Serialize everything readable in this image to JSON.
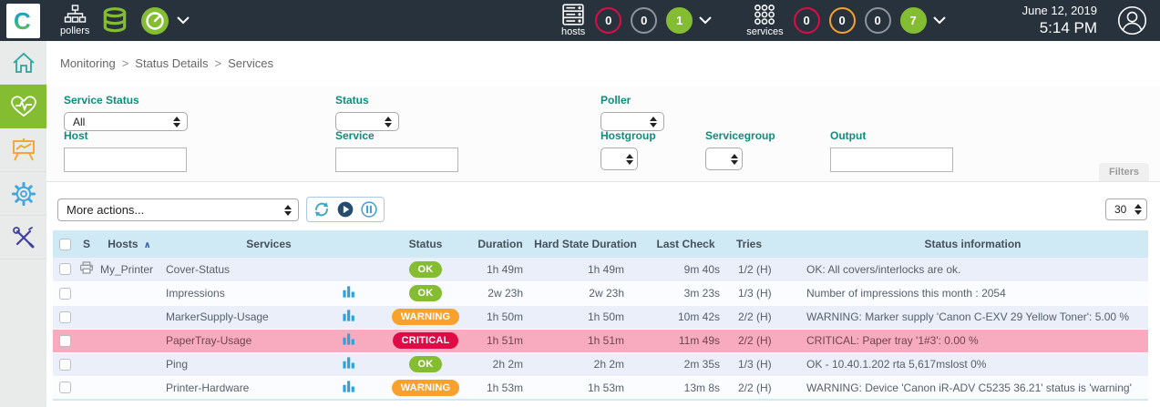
{
  "topbar": {
    "logo_letter": "C",
    "pollers_label": "pollers",
    "hosts": {
      "label": "hosts",
      "counters": [
        {
          "value": "0",
          "style": "red-outline"
        },
        {
          "value": "0",
          "style": "gray-outline"
        },
        {
          "value": "1",
          "style": "green-filled"
        }
      ]
    },
    "services": {
      "label": "services",
      "counters": [
        {
          "value": "0",
          "style": "red-outline"
        },
        {
          "value": "0",
          "style": "orange-outline"
        },
        {
          "value": "0",
          "style": "gray-outline"
        },
        {
          "value": "7",
          "style": "green-filled"
        }
      ]
    },
    "date": "June 12, 2019",
    "time": "5:14 PM"
  },
  "sidebar": {
    "items": [
      {
        "name": "home",
        "icon": "home-icon",
        "active": false
      },
      {
        "name": "monitoring",
        "icon": "heart-pulse-icon",
        "active": true
      },
      {
        "name": "reporting",
        "icon": "chart-easel-icon",
        "active": false
      },
      {
        "name": "configuration",
        "icon": "gear-icon",
        "active": false
      },
      {
        "name": "administration",
        "icon": "tools-icon",
        "active": false
      }
    ]
  },
  "breadcrumb": {
    "items": [
      "Monitoring",
      "Status Details",
      "Services"
    ],
    "separator": ">"
  },
  "filters": {
    "service_status": {
      "label": "Service Status",
      "value": "All"
    },
    "status": {
      "label": "Status",
      "value": ""
    },
    "poller": {
      "label": "Poller",
      "value": ""
    },
    "host": {
      "label": "Host",
      "value": ""
    },
    "service": {
      "label": "Service",
      "value": ""
    },
    "hostgroup": {
      "label": "Hostgroup",
      "value": ""
    },
    "servicegroup": {
      "label": "Servicegroup",
      "value": ""
    },
    "output": {
      "label": "Output",
      "value": ""
    },
    "filters_tab_label": "Filters"
  },
  "toolbar": {
    "more_actions_label": "More actions...",
    "page_size": "30"
  },
  "table": {
    "headers": {
      "s": "S",
      "hosts": "Hosts",
      "services": "Services",
      "status": "Status",
      "duration": "Duration",
      "hard": "Hard State Duration",
      "last_check": "Last Check",
      "tries": "Tries",
      "info": "Status information"
    },
    "rows": [
      {
        "host": "My_Printer",
        "host_icon": "printer-icon",
        "service": "Cover-Status",
        "has_graph": false,
        "status": "OK",
        "status_type": "ok",
        "duration": "1h 49m",
        "hard": "1h 49m",
        "last_check": "9m 40s",
        "tries": "1/2 (H)",
        "info": "OK: All covers/interlocks are ok.",
        "critical_row": false
      },
      {
        "host": "",
        "host_icon": "",
        "service": "Impressions",
        "has_graph": true,
        "status": "OK",
        "status_type": "ok",
        "duration": "2w 23h",
        "hard": "2w 23h",
        "last_check": "3m 23s",
        "tries": "1/3 (H)",
        "info": "Number of impressions this month : 2054",
        "critical_row": false
      },
      {
        "host": "",
        "host_icon": "",
        "service": "MarkerSupply-Usage",
        "has_graph": true,
        "status": "WARNING",
        "status_type": "warning",
        "duration": "1h 50m",
        "hard": "1h 50m",
        "last_check": "10m 42s",
        "tries": "2/2 (H)",
        "info": "WARNING: Marker supply 'Canon C-EXV 29 Yellow Toner': 5.00 %",
        "critical_row": false
      },
      {
        "host": "",
        "host_icon": "",
        "service": "PaperTray-Usage",
        "has_graph": true,
        "status": "CRITICAL",
        "status_type": "critical",
        "duration": "1h 51m",
        "hard": "1h 51m",
        "last_check": "11m 49s",
        "tries": "2/2 (H)",
        "info": "CRITICAL: Paper tray '1#3': 0.00 %",
        "critical_row": true
      },
      {
        "host": "",
        "host_icon": "",
        "service": "Ping",
        "has_graph": true,
        "status": "OK",
        "status_type": "ok",
        "duration": "2h 2m",
        "hard": "2h 2m",
        "last_check": "2m 35s",
        "tries": "1/3 (H)",
        "info": "OK - 10.40.1.202 rta 5,617mslost 0%",
        "critical_row": false
      },
      {
        "host": "",
        "host_icon": "",
        "service": "Printer-Hardware",
        "has_graph": true,
        "status": "WARNING",
        "status_type": "warning",
        "duration": "1h 53m",
        "hard": "1h 53m",
        "last_check": "13m 8s",
        "tries": "2/2 (H)",
        "info": "WARNING: Device 'Canon iR-ADV C5235 36.21' status is 'warning'",
        "critical_row": false
      }
    ]
  },
  "colors": {
    "topbar_bg": "#28323d",
    "brand_green": "#84bd32",
    "ok": "#84bd32",
    "warning": "#f8a12c",
    "critical": "#e00b46",
    "critical_row_bg": "#f8abbe",
    "table_header_bg": "#cfe9f5",
    "filter_label": "#0c8d7c",
    "row_odd": "#eaeffa",
    "row_even": "#fafcff",
    "graph_icon_blue": "#2aa3dc"
  }
}
